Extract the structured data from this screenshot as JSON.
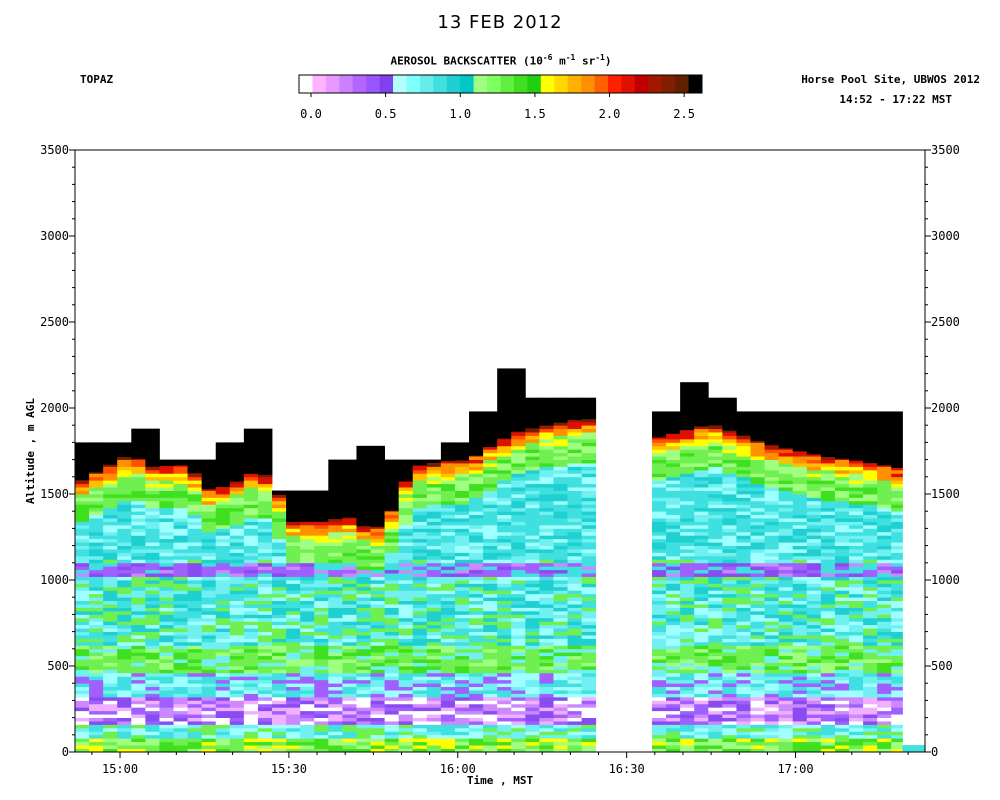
{
  "title": "13 FEB 2012",
  "instrument": "TOPAZ",
  "site": "Horse Pool Site, UBWOS 2012",
  "time_range": "14:52 - 17:22 MST",
  "colorbar": {
    "title_main": "AEROSOL BACKSCATTER (10",
    "title_exp1": "-6",
    "title_mid": " m",
    "title_exp2": "-1",
    "title_mid2": " sr",
    "title_exp3": "-1",
    "title_end": ")",
    "ticks": [
      "0.0",
      "0.5",
      "1.0",
      "1.5",
      "2.0",
      "2.5"
    ],
    "tick_values": [
      0,
      0.5,
      1.0,
      1.5,
      2.0,
      2.5
    ],
    "range": [
      0,
      2.7
    ],
    "colors": [
      "#ffffff",
      "#ffb3ff",
      "#e699ff",
      "#cc80ff",
      "#b366ff",
      "#9955ff",
      "#8040f0",
      "#b3ffff",
      "#80ffff",
      "#66ecec",
      "#40e0e0",
      "#20d0d0",
      "#00c8c8",
      "#a0ff80",
      "#80ff60",
      "#60f040",
      "#40e020",
      "#20d010",
      "#ffff00",
      "#ffd800",
      "#ffb000",
      "#ff9000",
      "#ff6000",
      "#ff2000",
      "#e01000",
      "#c00000",
      "#a01800",
      "#802000",
      "#602000",
      "#000000"
    ]
  },
  "chart_data": {
    "type": "heatmap",
    "xlabel": "Time , MST",
    "ylabel": "Altitude , m AGL",
    "x_ticks": [
      "15:00",
      "15:30",
      "16:00",
      "16:30",
      "17:00"
    ],
    "x_tick_minutes": [
      900,
      930,
      960,
      990,
      1020
    ],
    "xlim_minutes": [
      892,
      1043
    ],
    "ylim": [
      0,
      3500
    ],
    "y_ticks": [
      0,
      500,
      1000,
      1500,
      2000,
      2500,
      3000,
      3500
    ],
    "data_gap_minutes": [
      984.5,
      994.5
    ],
    "data_end_minutes": [
      1039
    ],
    "saturated_top_profile": {
      "x_minutes": [
        892,
        897.3,
        897.3,
        902.7,
        902.7,
        907.3,
        907.3,
        912,
        912,
        917.3,
        917.3,
        922.7,
        922.7,
        927.3,
        927.3,
        932,
        932,
        937.3,
        937.3,
        942.7,
        942.7,
        947.3,
        947.3,
        952,
        952,
        957.3,
        957.3,
        962,
        962,
        967.3,
        967.3,
        972,
        972,
        976.7,
        976.7,
        981.3,
        981.3,
        984.5
      ],
      "top_m": [
        1800,
        1800,
        1800,
        1800,
        1880,
        1880,
        1700,
        1700,
        1700,
        1700,
        1800,
        1800,
        1880,
        1880,
        1520,
        1520,
        1520,
        1520,
        1700,
        1700,
        1780,
        1780,
        1700,
        1700,
        1700,
        1700,
        1800,
        1800,
        1980,
        1980,
        2230,
        2230,
        2060,
        2060,
        2060,
        2060,
        2060,
        2060
      ]
    },
    "saturated_top_profile_after_gap": {
      "x_minutes": [
        994.5,
        999.3,
        999.3,
        1004,
        1004,
        1008.7,
        1008.7,
        1039
      ],
      "top_m": [
        1980,
        1980,
        2150,
        2150,
        2060,
        2060,
        1980,
        1880
      ]
    },
    "aerosol_layer_top_m": {
      "x_minutes": [
        892,
        902,
        905,
        912,
        916,
        920,
        923,
        927,
        930,
        937,
        940,
        944,
        947,
        952,
        957,
        962,
        970,
        980,
        984.5,
        994.5,
        1005,
        1015,
        1025,
        1030,
        1039
      ],
      "top_m": [
        1560,
        1740,
        1660,
        1670,
        1520,
        1560,
        1620,
        1610,
        1340,
        1340,
        1380,
        1300,
        1320,
        1660,
        1690,
        1700,
        1860,
        1930,
        1940,
        1820,
        1910,
        1790,
        1720,
        1700,
        1650
      ]
    }
  }
}
